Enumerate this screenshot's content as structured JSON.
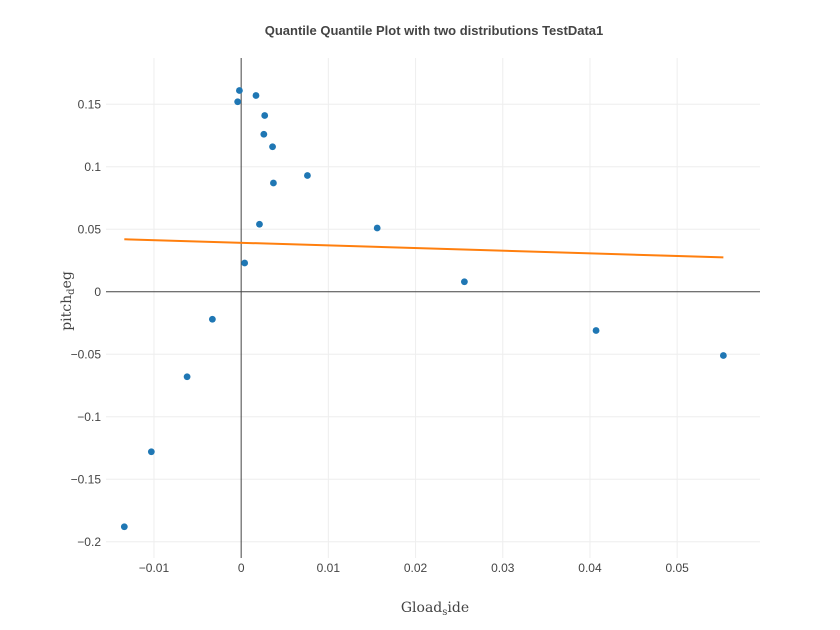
{
  "chart_data": {
    "type": "scatter",
    "title": "Quantile Quantile Plot with two distributions TestData1",
    "xlabel": "Gload,ide",
    "ylabel": "pitch,eg",
    "xlabel_sub_char": "s",
    "ylabel_sub_char": "d",
    "xlim": [
      -0.0155,
      0.0595
    ],
    "ylim": [
      -0.213,
      0.187
    ],
    "grid": true,
    "legend": "none",
    "x_ticks": [
      {
        "value": -0.01,
        "label": "−0.01"
      },
      {
        "value": 0,
        "label": "0"
      },
      {
        "value": 0.01,
        "label": "0.01"
      },
      {
        "value": 0.02,
        "label": "0.02"
      },
      {
        "value": 0.03,
        "label": "0.03"
      },
      {
        "value": 0.04,
        "label": "0.04"
      },
      {
        "value": 0.05,
        "label": "0.05"
      }
    ],
    "y_ticks": [
      {
        "value": 0.15,
        "label": "0.15"
      },
      {
        "value": 0.1,
        "label": "0.1"
      },
      {
        "value": 0.05,
        "label": "0.05"
      },
      {
        "value": 0,
        "label": "0"
      },
      {
        "value": -0.05,
        "label": "−0.05"
      },
      {
        "value": -0.1,
        "label": "−0.1"
      },
      {
        "value": -0.15,
        "label": "−0.15"
      },
      {
        "value": -0.2,
        "label": "−0.2"
      }
    ],
    "series": [
      {
        "type": "scatter",
        "color": "#1f77b4",
        "points": [
          {
            "x": -0.0134,
            "y": -0.188
          },
          {
            "x": -0.0103,
            "y": -0.128
          },
          {
            "x": -0.0062,
            "y": -0.068
          },
          {
            "x": -0.0033,
            "y": -0.022
          },
          {
            "x": 0.0004,
            "y": 0.023
          },
          {
            "x": -0.0004,
            "y": 0.152
          },
          {
            "x": -0.0002,
            "y": 0.161
          },
          {
            "x": 0.0017,
            "y": 0.157
          },
          {
            "x": 0.0021,
            "y": 0.054
          },
          {
            "x": 0.0026,
            "y": 0.126
          },
          {
            "x": 0.0027,
            "y": 0.141
          },
          {
            "x": 0.0036,
            "y": 0.116
          },
          {
            "x": 0.0037,
            "y": 0.087
          },
          {
            "x": 0.0076,
            "y": 0.093
          },
          {
            "x": 0.0156,
            "y": 0.051
          },
          {
            "x": 0.0256,
            "y": 0.008
          },
          {
            "x": 0.0407,
            "y": -0.031
          },
          {
            "x": 0.0553,
            "y": -0.051
          }
        ]
      },
      {
        "type": "line",
        "color": "#ff7f0e",
        "points": [
          {
            "x": -0.0134,
            "y": 0.042
          },
          {
            "x": 0.0553,
            "y": 0.0275
          }
        ]
      }
    ]
  }
}
